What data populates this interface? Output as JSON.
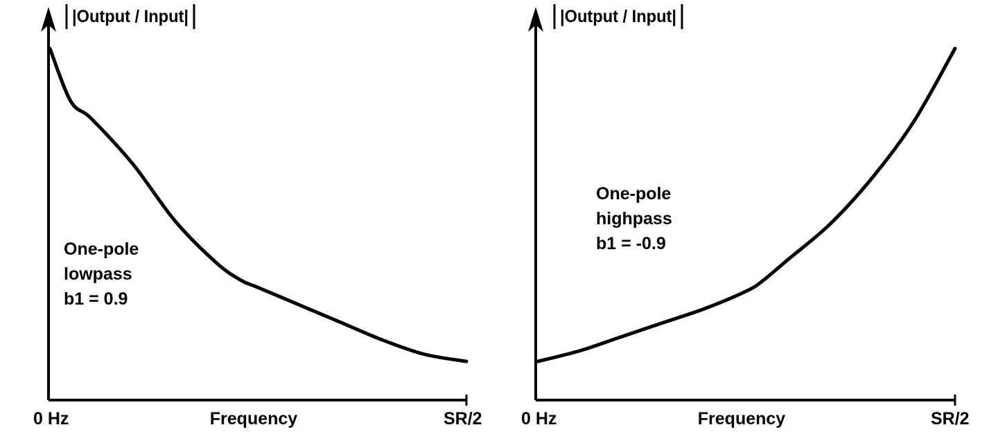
{
  "chart_data": [
    {
      "type": "line",
      "ylabel": "|Output / Input|",
      "xlabel": "Frequency",
      "x_tick_labels": [
        "0 Hz",
        "SR/2"
      ],
      "annotation": [
        "One-pole",
        "lowpass",
        "b1 = 0.9"
      ],
      "xlim": [
        0,
        1
      ],
      "ylim": [
        0,
        1
      ],
      "grid": false,
      "series": [
        {
          "x": [
            0,
            0.05,
            0.1,
            0.2,
            0.3,
            0.4,
            0.46,
            0.5,
            0.6,
            0.7,
            0.8,
            0.9,
            1.0
          ],
          "values": [
            1.0,
            0.85,
            0.8,
            0.67,
            0.51,
            0.39,
            0.34,
            0.32,
            0.27,
            0.22,
            0.17,
            0.13,
            0.11
          ]
        }
      ]
    },
    {
      "type": "line",
      "ylabel": "|Output / Input|",
      "xlabel": "Frequency",
      "x_tick_labels": [
        "0 Hz",
        "SR/2"
      ],
      "annotation": [
        "One-pole",
        "highpass",
        "b1 = -0.9"
      ],
      "xlim": [
        0,
        1
      ],
      "ylim": [
        0,
        1
      ],
      "grid": false,
      "series": [
        {
          "x": [
            0,
            0.1,
            0.2,
            0.3,
            0.4,
            0.5,
            0.54,
            0.6,
            0.7,
            0.8,
            0.9,
            1.0
          ],
          "values": [
            0.11,
            0.14,
            0.18,
            0.22,
            0.26,
            0.31,
            0.34,
            0.4,
            0.5,
            0.63,
            0.79,
            1.0
          ]
        }
      ]
    }
  ]
}
